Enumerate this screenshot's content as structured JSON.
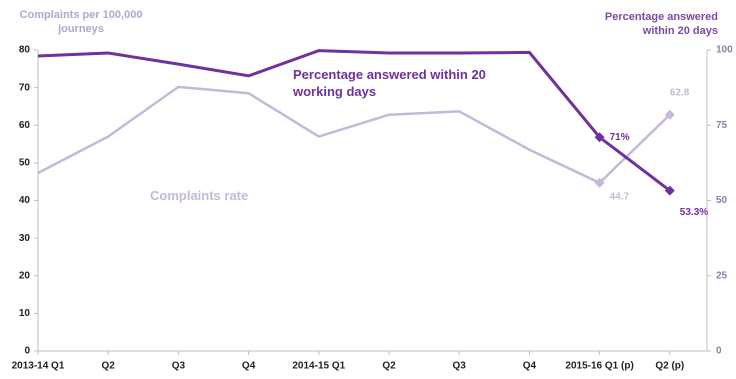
{
  "chart_data": {
    "type": "line",
    "y_title": "Complaints per 100,000 journeys",
    "y2_title": "Percentage answered within 20 days",
    "categories": [
      "2013-14 Q1",
      "Q2",
      "Q3",
      "Q4",
      "2014-15 Q1",
      "Q2",
      "Q3",
      "Q4",
      "2015-16 Q1 (p)",
      "Q2 (p)"
    ],
    "series": [
      {
        "name": "Complaints rate",
        "color": "#c5b8d8",
        "axis": "y",
        "values": [
          47.3,
          57,
          70.2,
          68.5,
          57,
          62.8,
          63.7,
          53.5,
          44.7,
          62.8
        ],
        "value_labels": [
          null,
          null,
          null,
          null,
          null,
          null,
          null,
          null,
          "44.7",
          "62.8"
        ]
      },
      {
        "name": "Percentage answered within 20 working days",
        "color": "#7030a0",
        "axis": "y2",
        "values": [
          98,
          99,
          95.3,
          91.4,
          99.8,
          99,
          99,
          99.2,
          71,
          53.3
        ],
        "value_labels": [
          null,
          null,
          null,
          null,
          null,
          null,
          null,
          null,
          "71%",
          "53.3%"
        ]
      }
    ],
    "ylim": [
      0,
      80
    ],
    "yticks": [
      0,
      10,
      20,
      30,
      40,
      50,
      60,
      70,
      80
    ],
    "y2lim": [
      0,
      100
    ],
    "y2ticks": [
      0,
      25,
      50,
      75,
      100
    ]
  }
}
